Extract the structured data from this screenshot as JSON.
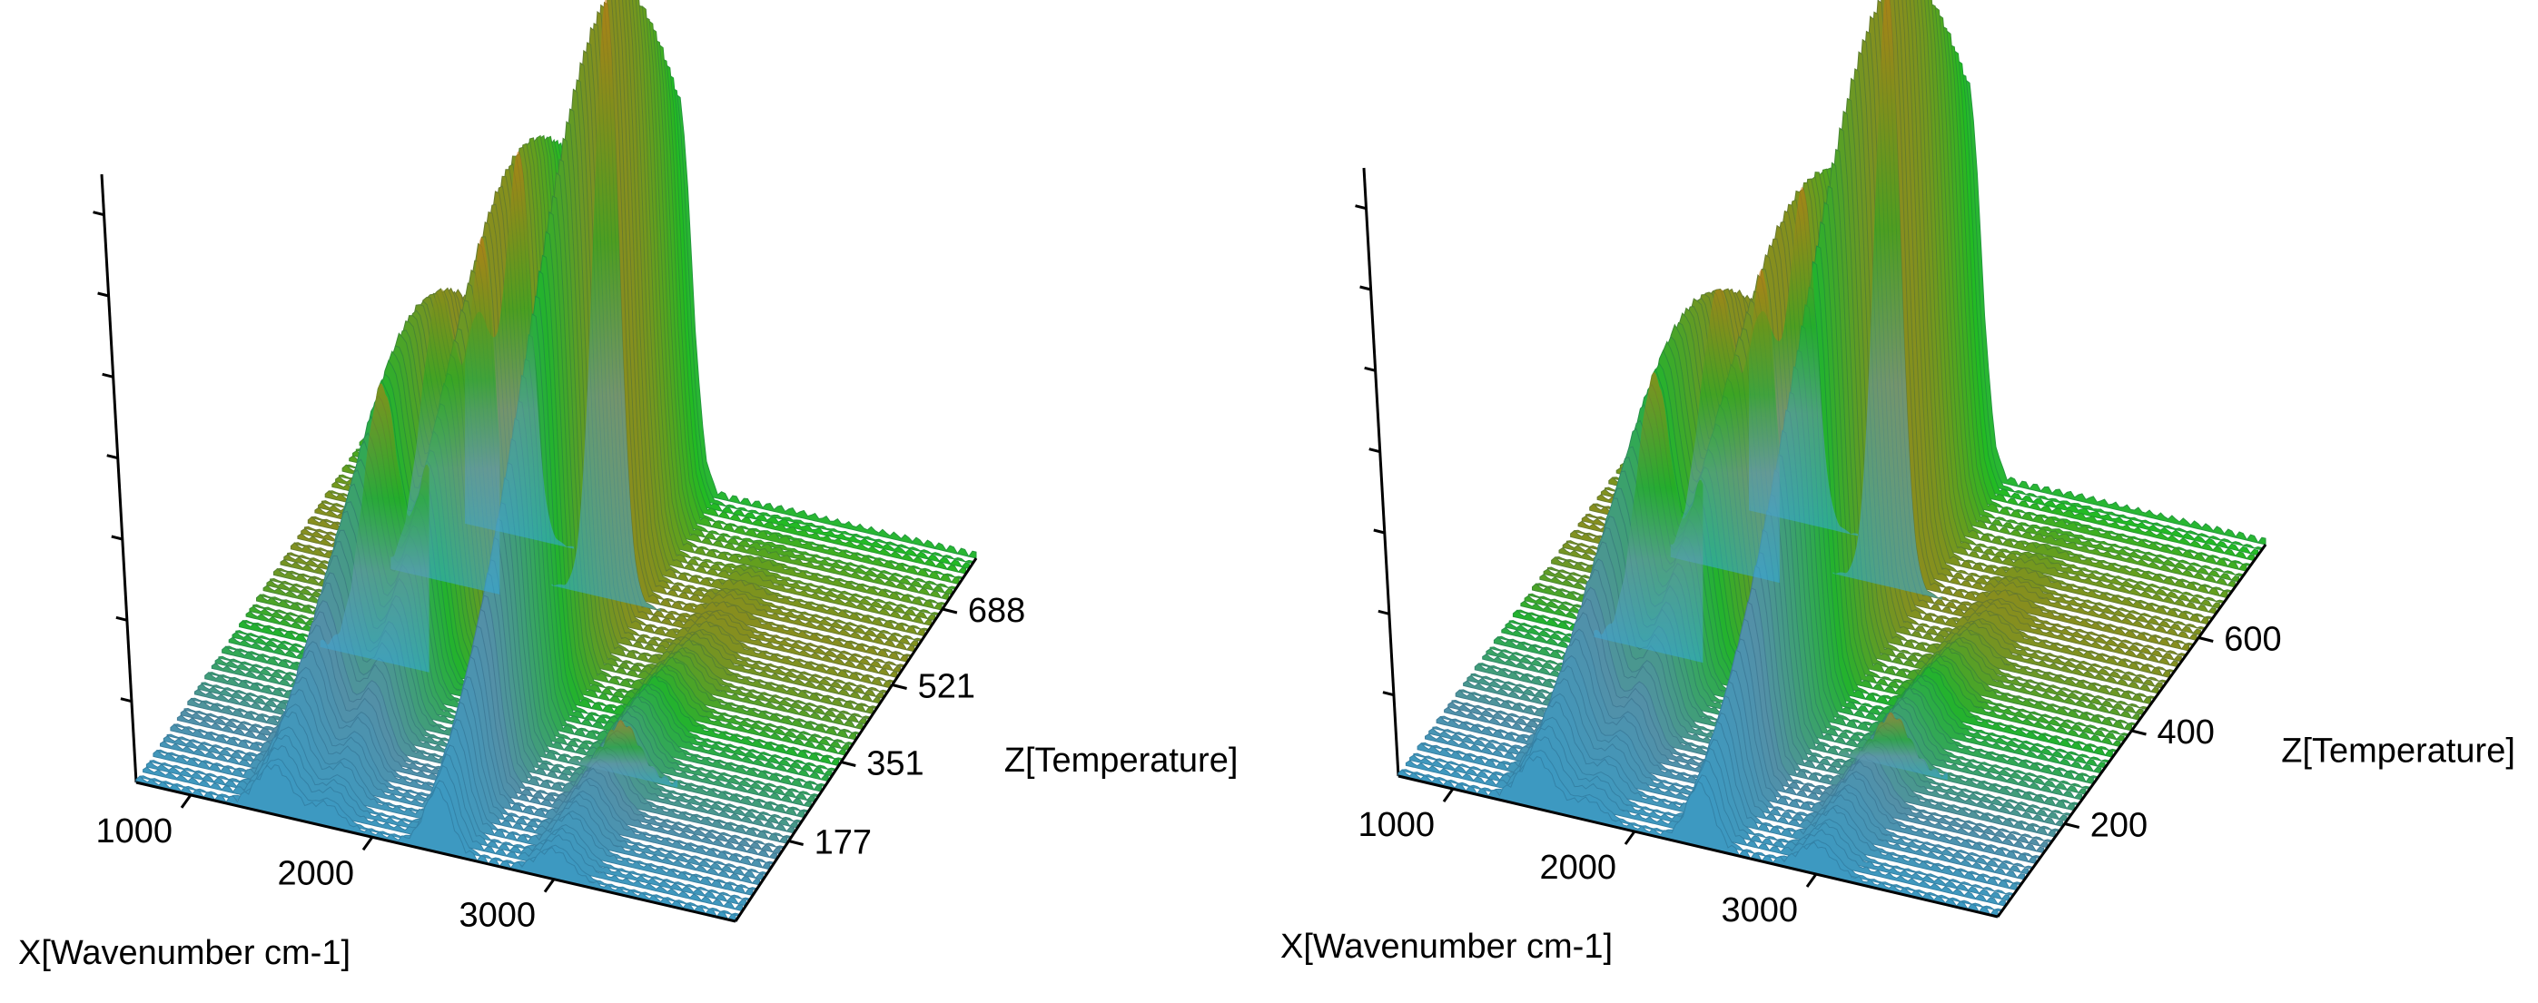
{
  "chart_data": [
    {
      "type": "surface3d",
      "title": "",
      "xlabel": "X[Wavenumber cm-1]",
      "zlabel": "Z[Temperature]",
      "x_ticks": [
        "1000",
        "2000",
        "3000"
      ],
      "z_ticks": [
        "177",
        "351",
        "521",
        "688"
      ],
      "x_range": [
        700,
        4000
      ],
      "z_range": [
        0,
        800
      ],
      "peaks": [
        {
          "x": 2360,
          "z": 560,
          "height": 1.0
        },
        {
          "x": 1750,
          "z": 640,
          "height": 0.62
        },
        {
          "x": 1540,
          "z": 520,
          "height": 0.35
        },
        {
          "x": 1450,
          "z": 340,
          "height": 0.28
        },
        {
          "x": 3000,
          "z": 230,
          "height": 0.08
        }
      ],
      "colors": {
        "base": "#33aadd",
        "mid": "#22bb22",
        "top": "#cc7711"
      }
    },
    {
      "type": "surface3d",
      "title": "",
      "xlabel": "X[Wavenumber cm-1]",
      "zlabel": "Z[Temperature]",
      "x_ticks": [
        "1000",
        "2000",
        "3000"
      ],
      "z_ticks": [
        "200",
        "400",
        "600"
      ],
      "x_range": [
        700,
        4000
      ],
      "z_range": [
        0,
        800
      ],
      "peaks": [
        {
          "x": 2360,
          "z": 560,
          "height": 1.0
        },
        {
          "x": 1750,
          "z": 640,
          "height": 0.54
        },
        {
          "x": 1540,
          "z": 520,
          "height": 0.32
        },
        {
          "x": 1450,
          "z": 340,
          "height": 0.3
        },
        {
          "x": 3000,
          "z": 230,
          "height": 0.08
        }
      ],
      "colors": {
        "base": "#33aadd",
        "mid": "#22bb22",
        "top": "#cc7711"
      }
    }
  ]
}
